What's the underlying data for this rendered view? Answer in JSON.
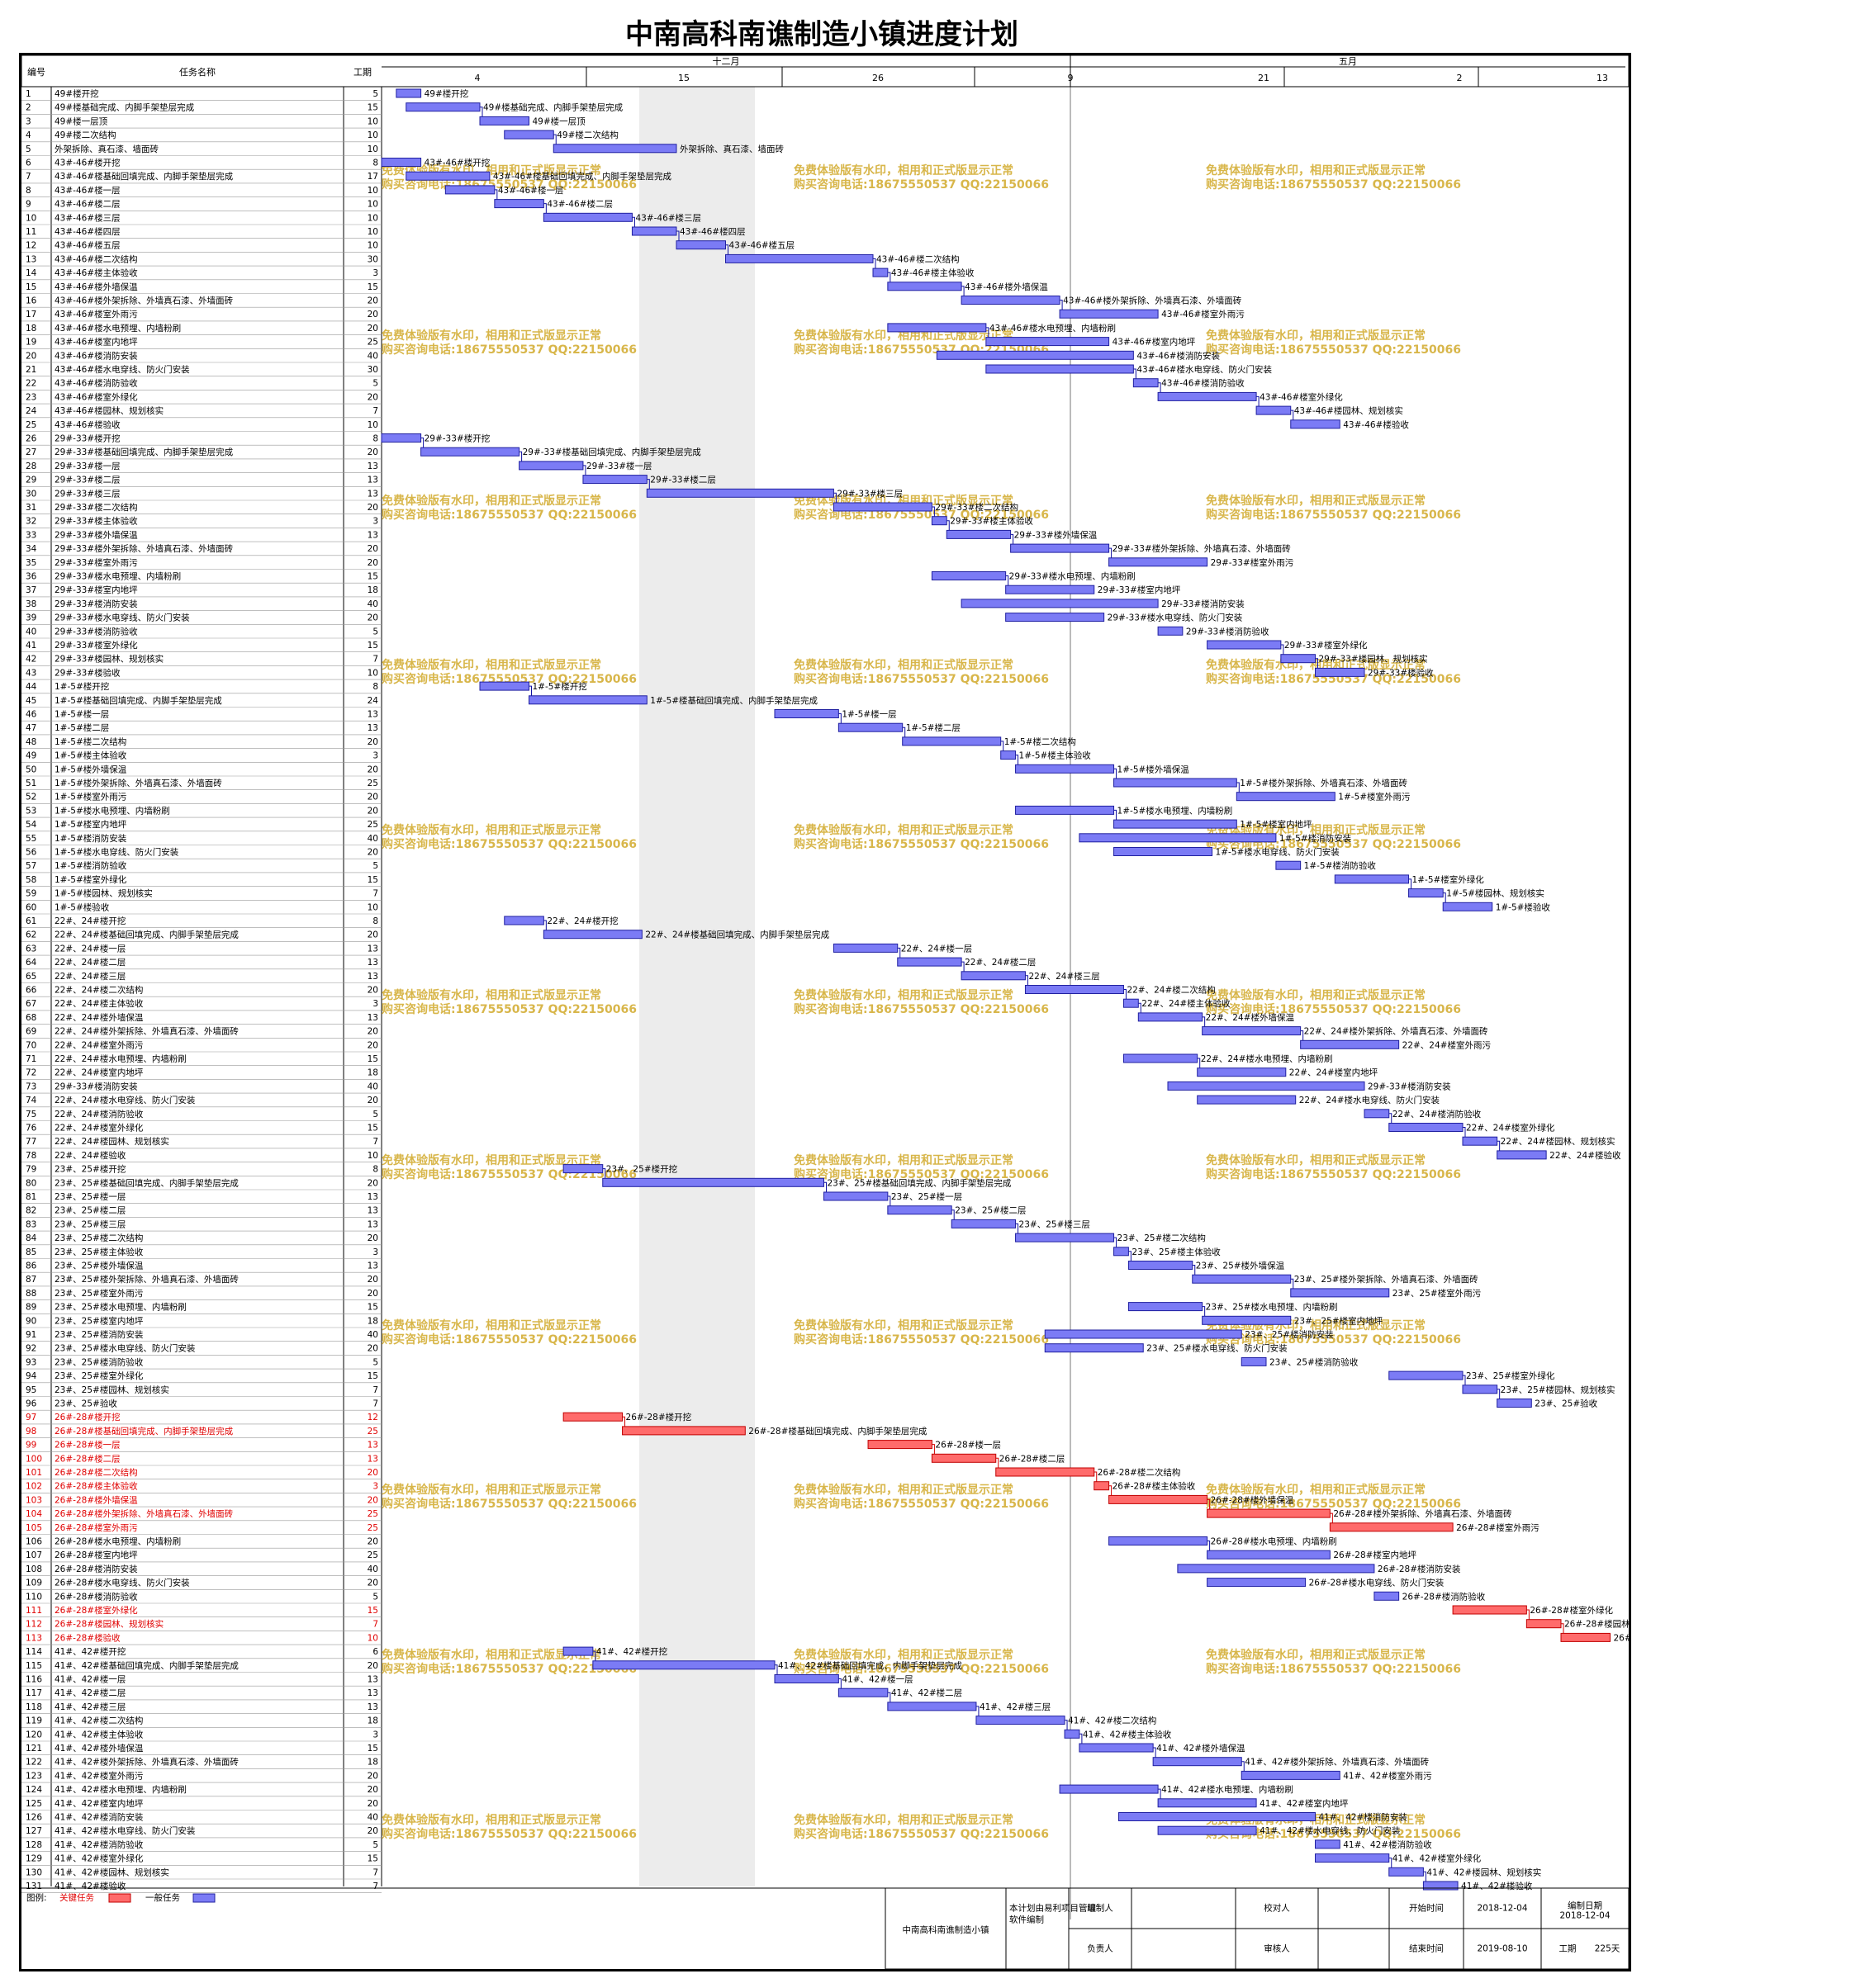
{
  "title": "中南高科南谯制造小镇进度计划",
  "table_headers": {
    "no": "编号",
    "name": "任务名称",
    "duration": "工期"
  },
  "timescale": {
    "months": [
      "十二月",
      "五月"
    ],
    "ticks": [
      "4",
      "15",
      "26",
      "9",
      "21",
      "2",
      "13"
    ]
  },
  "watermark": {
    "line1": "免费体验版有水印，相用和正式版显示正常",
    "line2": "购买咨询电话:18675550537 QQ:22150066"
  },
  "legend": {
    "label": "图例:",
    "critical": "关键任务",
    "normal": "一般任务"
  },
  "footer": {
    "project": "中南高科南谯制造小镇",
    "software_note": "本计划由易利项目管理软件编制",
    "prepared_by": "编制人",
    "responsible": "负责人",
    "checker": "校对人",
    "reviewer": "审核人",
    "start_label": "开始时间",
    "start_value": "2018-12-04",
    "end_label": "结束时间",
    "end_value": "2019-08-10",
    "edit_date_label": "编制日期",
    "edit_date_value": "2018-12-04",
    "duration_label": "工期",
    "duration_value": "225天"
  },
  "colors": {
    "critical": "#ff6b6b",
    "normal": "#7b7bf5",
    "critical_text": "#e00000"
  },
  "tasks": [
    {
      "no": "1",
      "name": "49#楼开挖",
      "dur": "5",
      "start": 3,
      "len": 5
    },
    {
      "no": "2",
      "name": "49#楼基础完成、内脚手架垫层完成",
      "dur": "15",
      "start": 5,
      "len": 15
    },
    {
      "no": "3",
      "name": "49#楼一层顶",
      "dur": "10",
      "start": 20,
      "len": 10
    },
    {
      "no": "4",
      "name": "49#楼二次结构",
      "dur": "10",
      "start": 25,
      "len": 10
    },
    {
      "no": "5",
      "name": "外架拆除、真石漆、墙面砖",
      "dur": "10",
      "start": 35,
      "len": 25,
      "label": "外架拆除、真石漆、墙面砖"
    },
    {
      "no": "6",
      "name": "43#-46#楼开挖",
      "dur": "8",
      "start": 0,
      "len": 8
    },
    {
      "no": "7",
      "name": "43#-46#楼基础回填完成、内脚手架垫层完成",
      "dur": "17",
      "start": 5,
      "len": 17
    },
    {
      "no": "8",
      "name": "43#-46#楼一层",
      "dur": "10",
      "start": 13,
      "len": 10
    },
    {
      "no": "9",
      "name": "43#-46#楼二层",
      "dur": "10",
      "start": 23,
      "len": 10
    },
    {
      "no": "10",
      "name": "43#-46#楼三层",
      "dur": "10",
      "start": 33,
      "len": 18
    },
    {
      "no": "11",
      "name": "43#-46#楼四层",
      "dur": "10",
      "start": 51,
      "len": 9
    },
    {
      "no": "12",
      "name": "43#-46#楼五层",
      "dur": "10",
      "start": 60,
      "len": 10
    },
    {
      "no": "13",
      "name": "43#-46#楼二次结构",
      "dur": "30",
      "start": 70,
      "len": 30
    },
    {
      "no": "14",
      "name": "43#-46#楼主体验收",
      "dur": "3",
      "start": 100,
      "len": 3
    },
    {
      "no": "15",
      "name": "43#-46#楼外墙保温",
      "dur": "15",
      "start": 103,
      "len": 15
    },
    {
      "no": "16",
      "name": "43#-46#楼外架拆除、外墙真石漆、外墙面砖",
      "dur": "20",
      "start": 118,
      "len": 20
    },
    {
      "no": "17",
      "name": "43#-46#楼室外雨污",
      "dur": "20",
      "start": 138,
      "len": 20
    },
    {
      "no": "18",
      "name": "43#-46#楼水电预埋、内墙粉刷",
      "dur": "20",
      "start": 103,
      "len": 20
    },
    {
      "no": "19",
      "name": "43#-46#楼室内地坪",
      "dur": "25",
      "start": 123,
      "len": 25
    },
    {
      "no": "20",
      "name": "43#-46#楼消防安装",
      "dur": "40",
      "start": 113,
      "len": 40
    },
    {
      "no": "21",
      "name": "43#-46#楼水电穿线、防火门安装",
      "dur": "30",
      "start": 123,
      "len": 30
    },
    {
      "no": "22",
      "name": "43#-46#楼消防验收",
      "dur": "5",
      "start": 153,
      "len": 5
    },
    {
      "no": "23",
      "name": "43#-46#楼室外绿化",
      "dur": "20",
      "start": 158,
      "len": 20
    },
    {
      "no": "24",
      "name": "43#-46#楼园林、规划核实",
      "dur": "7",
      "start": 178,
      "len": 7
    },
    {
      "no": "25",
      "name": "43#-46#楼验收",
      "dur": "10",
      "start": 185,
      "len": 10
    },
    {
      "no": "26",
      "name": "29#-33#楼开挖",
      "dur": "8",
      "start": 0,
      "len": 8
    },
    {
      "no": "27",
      "name": "29#-33#楼基础回填完成、内脚手架垫层完成",
      "dur": "20",
      "start": 8,
      "len": 20
    },
    {
      "no": "28",
      "name": "29#-33#楼一层",
      "dur": "13",
      "start": 28,
      "len": 13
    },
    {
      "no": "29",
      "name": "29#-33#楼二层",
      "dur": "13",
      "start": 41,
      "len": 13
    },
    {
      "no": "30",
      "name": "29#-33#楼三层",
      "dur": "13",
      "start": 54,
      "len": 38
    },
    {
      "no": "31",
      "name": "29#-33#楼二次结构",
      "dur": "20",
      "start": 92,
      "len": 20
    },
    {
      "no": "32",
      "name": "29#-33#楼主体验收",
      "dur": "3",
      "start": 112,
      "len": 3
    },
    {
      "no": "33",
      "name": "29#-33#楼外墙保温",
      "dur": "13",
      "start": 115,
      "len": 13
    },
    {
      "no": "34",
      "name": "29#-33#楼外架拆除、外墙真石漆、外墙面砖",
      "dur": "20",
      "start": 128,
      "len": 20
    },
    {
      "no": "35",
      "name": "29#-33#楼室外雨污",
      "dur": "20",
      "start": 148,
      "len": 20
    },
    {
      "no": "36",
      "name": "29#-33#楼水电预埋、内墙粉刷",
      "dur": "15",
      "start": 112,
      "len": 15
    },
    {
      "no": "37",
      "name": "29#-33#楼室内地坪",
      "dur": "18",
      "start": 127,
      "len": 18
    },
    {
      "no": "38",
      "name": "29#-33#楼消防安装",
      "dur": "40",
      "start": 118,
      "len": 40
    },
    {
      "no": "39",
      "name": "29#-33#楼水电穿线、防火门安装",
      "dur": "20",
      "start": 127,
      "len": 20
    },
    {
      "no": "40",
      "name": "29#-33#楼消防验收",
      "dur": "5",
      "start": 158,
      "len": 5
    },
    {
      "no": "41",
      "name": "29#-33#楼室外绿化",
      "dur": "15",
      "start": 168,
      "len": 15
    },
    {
      "no": "42",
      "name": "29#-33#楼园林、规划核实",
      "dur": "7",
      "start": 183,
      "len": 7
    },
    {
      "no": "43",
      "name": "29#-33#楼验收",
      "dur": "10",
      "start": 190,
      "len": 10
    },
    {
      "no": "44",
      "name": "1#-5#楼开挖",
      "dur": "8",
      "start": 20,
      "len": 10
    },
    {
      "no": "45",
      "name": "1#-5#楼基础回填完成、内脚手架垫层完成",
      "dur": "24",
      "start": 30,
      "len": 24
    },
    {
      "no": "46",
      "name": "1#-5#楼一层",
      "dur": "13",
      "start": 80,
      "len": 13
    },
    {
      "no": "47",
      "name": "1#-5#楼二层",
      "dur": "13",
      "start": 93,
      "len": 13
    },
    {
      "no": "48",
      "name": "1#-5#楼二次结构",
      "dur": "20",
      "start": 106,
      "len": 20
    },
    {
      "no": "49",
      "name": "1#-5#楼主体验收",
      "dur": "3",
      "start": 126,
      "len": 3
    },
    {
      "no": "50",
      "name": "1#-5#楼外墙保温",
      "dur": "20",
      "start": 129,
      "len": 20
    },
    {
      "no": "51",
      "name": "1#-5#楼外架拆除、外墙真石漆、外墙面砖",
      "dur": "25",
      "start": 149,
      "len": 25
    },
    {
      "no": "52",
      "name": "1#-5#楼室外雨污",
      "dur": "20",
      "start": 174,
      "len": 20
    },
    {
      "no": "53",
      "name": "1#-5#楼水电预埋、内墙粉刷",
      "dur": "20",
      "start": 129,
      "len": 20
    },
    {
      "no": "54",
      "name": "1#-5#楼室内地坪",
      "dur": "25",
      "start": 149,
      "len": 25
    },
    {
      "no": "55",
      "name": "1#-5#楼消防安装",
      "dur": "40",
      "start": 142,
      "len": 40
    },
    {
      "no": "56",
      "name": "1#-5#楼水电穿线、防火门安装",
      "dur": "20",
      "start": 149,
      "len": 20
    },
    {
      "no": "57",
      "name": "1#-5#楼消防验收",
      "dur": "5",
      "start": 182,
      "len": 5
    },
    {
      "no": "58",
      "name": "1#-5#楼室外绿化",
      "dur": "15",
      "start": 194,
      "len": 15
    },
    {
      "no": "59",
      "name": "1#-5#楼园林、规划核实",
      "dur": "7",
      "start": 209,
      "len": 7
    },
    {
      "no": "60",
      "name": "1#-5#楼验收",
      "dur": "10",
      "start": 216,
      "len": 10
    },
    {
      "no": "61",
      "name": "22#、24#楼开挖",
      "dur": "8",
      "start": 25,
      "len": 8
    },
    {
      "no": "62",
      "name": "22#、24#楼基础回填完成、内脚手架垫层完成",
      "dur": "20",
      "start": 33,
      "len": 20
    },
    {
      "no": "63",
      "name": "22#、24#楼一层",
      "dur": "13",
      "start": 92,
      "len": 13
    },
    {
      "no": "64",
      "name": "22#、24#楼二层",
      "dur": "13",
      "start": 105,
      "len": 13
    },
    {
      "no": "65",
      "name": "22#、24#楼三层",
      "dur": "13",
      "start": 118,
      "len": 13
    },
    {
      "no": "66",
      "name": "22#、24#楼二次结构",
      "dur": "20",
      "start": 131,
      "len": 20
    },
    {
      "no": "67",
      "name": "22#、24#楼主体验收",
      "dur": "3",
      "start": 151,
      "len": 3
    },
    {
      "no": "68",
      "name": "22#、24#楼外墙保温",
      "dur": "13",
      "start": 154,
      "len": 13
    },
    {
      "no": "69",
      "name": "22#、24#楼外架拆除、外墙真石漆、外墙面砖",
      "dur": "20",
      "start": 167,
      "len": 20
    },
    {
      "no": "70",
      "name": "22#、24#楼室外雨污",
      "dur": "20",
      "start": 187,
      "len": 20
    },
    {
      "no": "71",
      "name": "22#、24#楼水电预埋、内墙粉刷",
      "dur": "15",
      "start": 151,
      "len": 15
    },
    {
      "no": "72",
      "name": "22#、24#楼室内地坪",
      "dur": "18",
      "start": 166,
      "len": 18
    },
    {
      "no": "73",
      "name": "29#-33#楼消防安装",
      "dur": "40",
      "start": 160,
      "len": 40
    },
    {
      "no": "74",
      "name": "22#、24#楼水电穿线、防火门安装",
      "dur": "20",
      "start": 166,
      "len": 20
    },
    {
      "no": "75",
      "name": "22#、24#楼消防验收",
      "dur": "5",
      "start": 200,
      "len": 5
    },
    {
      "no": "76",
      "name": "22#、24#楼室外绿化",
      "dur": "15",
      "start": 205,
      "len": 15
    },
    {
      "no": "77",
      "name": "22#、24#楼园林、规划核实",
      "dur": "7",
      "start": 220,
      "len": 7
    },
    {
      "no": "78",
      "name": "22#、24#楼验收",
      "dur": "10",
      "start": 227,
      "len": 10
    },
    {
      "no": "79",
      "name": "23#、25#楼开挖",
      "dur": "8",
      "start": 37,
      "len": 8
    },
    {
      "no": "80",
      "name": "23#、25#楼基础回填完成、内脚手架垫层完成",
      "dur": "20",
      "start": 45,
      "len": 45
    },
    {
      "no": "81",
      "name": "23#、25#楼一层",
      "dur": "13",
      "start": 90,
      "len": 13
    },
    {
      "no": "82",
      "name": "23#、25#楼二层",
      "dur": "13",
      "start": 103,
      "len": 13
    },
    {
      "no": "83",
      "name": "23#、25#楼三层",
      "dur": "13",
      "start": 116,
      "len": 13
    },
    {
      "no": "84",
      "name": "23#、25#楼二次结构",
      "dur": "20",
      "start": 129,
      "len": 20
    },
    {
      "no": "85",
      "name": "23#、25#楼主体验收",
      "dur": "3",
      "start": 149,
      "len": 3
    },
    {
      "no": "86",
      "name": "23#、25#楼外墙保温",
      "dur": "13",
      "start": 152,
      "len": 13
    },
    {
      "no": "87",
      "name": "23#、25#楼外架拆除、外墙真石漆、外墙面砖",
      "dur": "20",
      "start": 165,
      "len": 20
    },
    {
      "no": "88",
      "name": "23#、25#楼室外雨污",
      "dur": "20",
      "start": 185,
      "len": 20
    },
    {
      "no": "89",
      "name": "23#、25#楼水电预埋、内墙粉刷",
      "dur": "15",
      "start": 152,
      "len": 15
    },
    {
      "no": "90",
      "name": "23#、25#楼室内地坪",
      "dur": "18",
      "start": 167,
      "len": 18
    },
    {
      "no": "91",
      "name": "23#、25#楼消防安装",
      "dur": "40",
      "start": 135,
      "len": 40
    },
    {
      "no": "92",
      "name": "23#、25#楼水电穿线、防火门安装",
      "dur": "20",
      "start": 135,
      "len": 20
    },
    {
      "no": "93",
      "name": "23#、25#楼消防验收",
      "dur": "5",
      "start": 175,
      "len": 5
    },
    {
      "no": "94",
      "name": "23#、25#楼室外绿化",
      "dur": "15",
      "start": 205,
      "len": 15
    },
    {
      "no": "95",
      "name": "23#、25#楼园林、规划核实",
      "dur": "7",
      "start": 220,
      "len": 7
    },
    {
      "no": "96",
      "name": "23#、25#验收",
      "dur": "7",
      "start": 227,
      "len": 7
    },
    {
      "no": "97",
      "name": "26#-28#楼开挖",
      "dur": "12",
      "start": 37,
      "len": 12,
      "crit": true
    },
    {
      "no": "98",
      "name": "26#-28#楼基础回填完成、内脚手架垫层完成",
      "dur": "25",
      "start": 49,
      "len": 25,
      "crit": true
    },
    {
      "no": "99",
      "name": "26#-28#楼一层",
      "dur": "13",
      "start": 99,
      "len": 13,
      "crit": true
    },
    {
      "no": "100",
      "name": "26#-28#楼二层",
      "dur": "13",
      "start": 112,
      "len": 13,
      "crit": true
    },
    {
      "no": "101",
      "name": "26#-28#楼二次结构",
      "dur": "20",
      "start": 125,
      "len": 20,
      "crit": true
    },
    {
      "no": "102",
      "name": "26#-28#楼主体验收",
      "dur": "3",
      "start": 145,
      "len": 3,
      "crit": true
    },
    {
      "no": "103",
      "name": "26#-28#楼外墙保温",
      "dur": "20",
      "start": 148,
      "len": 20,
      "crit": true
    },
    {
      "no": "104",
      "name": "26#-28#楼外架拆除、外墙真石漆、外墙面砖",
      "dur": "25",
      "start": 168,
      "len": 25,
      "crit": true
    },
    {
      "no": "105",
      "name": "26#-28#楼室外雨污",
      "dur": "25",
      "start": 193,
      "len": 25,
      "crit": true
    },
    {
      "no": "106",
      "name": "26#-28#楼水电预埋、内墙粉刷",
      "dur": "20",
      "start": 148,
      "len": 20
    },
    {
      "no": "107",
      "name": "26#-28#楼室内地坪",
      "dur": "25",
      "start": 168,
      "len": 25
    },
    {
      "no": "108",
      "name": "26#-28#楼消防安装",
      "dur": "40",
      "start": 162,
      "len": 40
    },
    {
      "no": "109",
      "name": "26#-28#楼水电穿线、防火门安装",
      "dur": "20",
      "start": 168,
      "len": 20
    },
    {
      "no": "110",
      "name": "26#-28#楼消防验收",
      "dur": "5",
      "start": 202,
      "len": 5
    },
    {
      "no": "111",
      "name": "26#-28#楼室外绿化",
      "dur": "15",
      "start": 218,
      "len": 15,
      "crit": true
    },
    {
      "no": "112",
      "name": "26#-28#楼园林、规划核实",
      "dur": "7",
      "start": 233,
      "len": 7,
      "crit": true
    },
    {
      "no": "113",
      "name": "26#-28#楼验收",
      "dur": "10",
      "start": 240,
      "len": 10,
      "crit": true
    },
    {
      "no": "114",
      "name": "41#、42#楼开挖",
      "dur": "6",
      "start": 37,
      "len": 6
    },
    {
      "no": "115",
      "name": "41#、42#楼基础回填完成、内脚手架垫层完成",
      "dur": "20",
      "start": 43,
      "len": 37
    },
    {
      "no": "116",
      "name": "41#、42#楼一层",
      "dur": "13",
      "start": 80,
      "len": 13
    },
    {
      "no": "117",
      "name": "41#、42#楼二层",
      "dur": "13",
      "start": 93,
      "len": 10
    },
    {
      "no": "118",
      "name": "41#、42#楼三层",
      "dur": "13",
      "start": 103,
      "len": 18
    },
    {
      "no": "119",
      "name": "41#、42#楼二次结构",
      "dur": "18",
      "start": 121,
      "len": 18
    },
    {
      "no": "120",
      "name": "41#、42#楼主体验收",
      "dur": "3",
      "start": 139,
      "len": 3
    },
    {
      "no": "121",
      "name": "41#、42#楼外墙保温",
      "dur": "15",
      "start": 142,
      "len": 15
    },
    {
      "no": "122",
      "name": "41#、42#楼外架拆除、外墙真石漆、外墙面砖",
      "dur": "18",
      "start": 157,
      "len": 18
    },
    {
      "no": "123",
      "name": "41#、42#楼室外雨污",
      "dur": "20",
      "start": 175,
      "len": 20
    },
    {
      "no": "124",
      "name": "41#、42#楼水电预埋、内墙粉刷",
      "dur": "20",
      "start": 138,
      "len": 20
    },
    {
      "no": "125",
      "name": "41#、42#楼室内地坪",
      "dur": "20",
      "start": 158,
      "len": 20
    },
    {
      "no": "126",
      "name": "41#、42#楼消防安装",
      "dur": "40",
      "start": 150,
      "len": 40
    },
    {
      "no": "127",
      "name": "41#、42#楼水电穿线、防火门安装",
      "dur": "20",
      "start": 158,
      "len": 20
    },
    {
      "no": "128",
      "name": "41#、42#楼消防验收",
      "dur": "5",
      "start": 190,
      "len": 5
    },
    {
      "no": "129",
      "name": "41#、42#楼室外绿化",
      "dur": "15",
      "start": 190,
      "len": 15
    },
    {
      "no": "130",
      "name": "41#、42#楼园林、规划核实",
      "dur": "7",
      "start": 205,
      "len": 7
    },
    {
      "no": "131",
      "name": "41#、42#楼验收",
      "dur": "7",
      "start": 212,
      "len": 7
    }
  ]
}
